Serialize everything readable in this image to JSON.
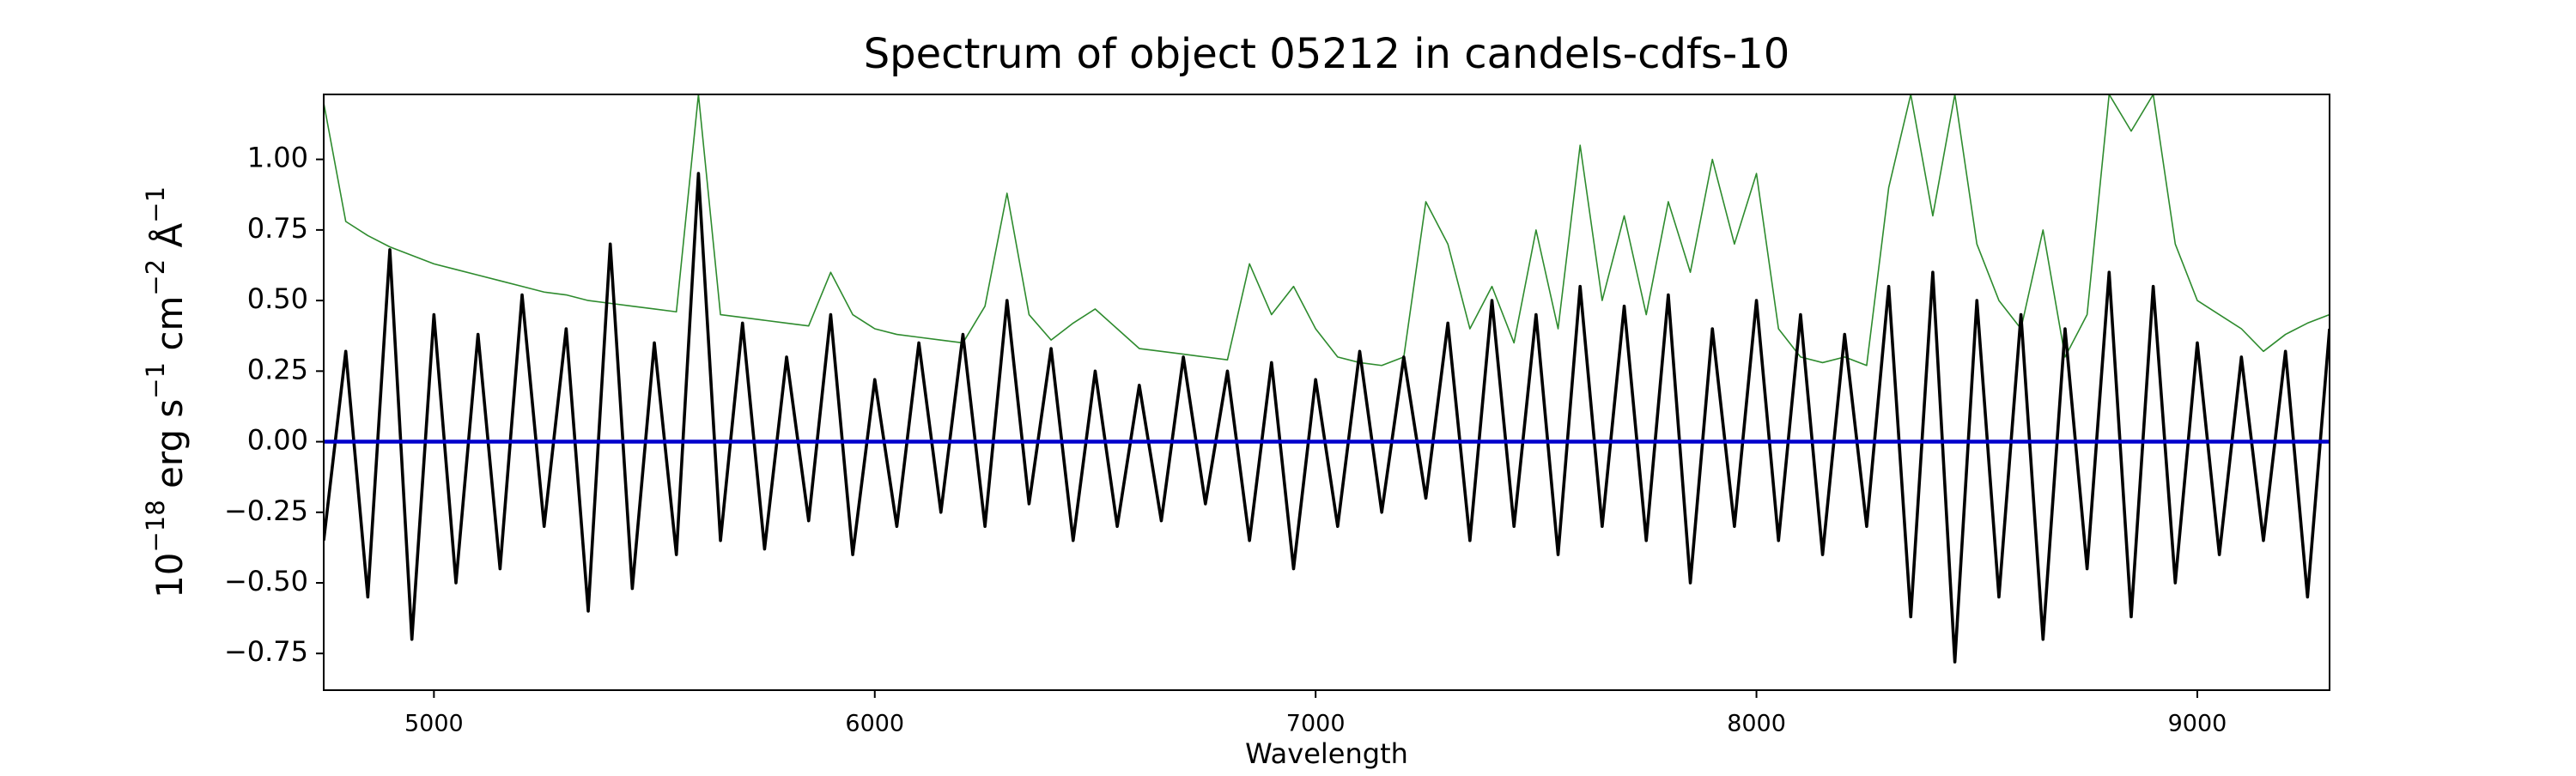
{
  "chart_data": {
    "type": "line",
    "title": "Spectrum of object 05212 in candels-cdfs-10",
    "x_label": "Wavelength",
    "y_label": [
      "10",
      "−18",
      " erg s",
      "−1",
      " cm",
      "−2",
      " Å",
      "−1"
    ],
    "xlim": [
      4750,
      9300
    ],
    "ylim": [
      -0.88,
      1.23
    ],
    "xticks": [
      5000,
      6000,
      7000,
      8000,
      9000
    ],
    "yticks": [
      {
        "value": -0.75,
        "label": "−0.75"
      },
      {
        "value": -0.5,
        "label": "−0.50"
      },
      {
        "value": -0.25,
        "label": "−0.25"
      },
      {
        "value": 0,
        "label": "0.00"
      },
      {
        "value": 0.25,
        "label": "0.25"
      },
      {
        "value": 0.5,
        "label": "0.50"
      },
      {
        "value": 0.75,
        "label": "0.75"
      },
      {
        "value": 1,
        "label": "1.00"
      }
    ],
    "grid": false,
    "series": [
      {
        "color": "#2e8b2e",
        "width": 1.6,
        "x": [
          4750,
          4800,
          4850,
          4900,
          4950,
          5000,
          5050,
          5100,
          5150,
          5200,
          5250,
          5300,
          5350,
          5400,
          5450,
          5500,
          5550,
          5600,
          5650,
          5700,
          5750,
          5800,
          5850,
          5900,
          5950,
          6000,
          6050,
          6100,
          6150,
          6200,
          6250,
          6300,
          6350,
          6400,
          6450,
          6500,
          6550,
          6600,
          6650,
          6700,
          6750,
          6800,
          6850,
          6900,
          6950,
          7000,
          7050,
          7100,
          7150,
          7200,
          7250,
          7300,
          7350,
          7400,
          7450,
          7500,
          7550,
          7600,
          7650,
          7700,
          7750,
          7800,
          7850,
          7900,
          7950,
          8000,
          8050,
          8100,
          8150,
          8200,
          8250,
          8300,
          8350,
          8400,
          8450,
          8500,
          8550,
          8600,
          8650,
          8700,
          8750,
          8800,
          8850,
          8900,
          8950,
          9000,
          9050,
          9100,
          9150,
          9200,
          9250,
          9300
        ],
        "values": [
          1.2,
          0.78,
          0.73,
          0.69,
          0.66,
          0.63,
          0.61,
          0.59,
          0.57,
          0.55,
          0.53,
          0.52,
          0.5,
          0.49,
          0.48,
          0.47,
          0.46,
          1.23,
          0.45,
          0.44,
          0.43,
          0.42,
          0.41,
          0.6,
          0.45,
          0.4,
          0.38,
          0.37,
          0.36,
          0.35,
          0.48,
          0.88,
          0.45,
          0.36,
          0.42,
          0.47,
          0.4,
          0.33,
          0.32,
          0.31,
          0.3,
          0.29,
          0.63,
          0.45,
          0.55,
          0.4,
          0.3,
          0.28,
          0.27,
          0.3,
          0.85,
          0.7,
          0.4,
          0.55,
          0.35,
          0.75,
          0.4,
          1.05,
          0.5,
          0.8,
          0.45,
          0.85,
          0.6,
          1.0,
          0.7,
          0.95,
          0.4,
          0.3,
          0.28,
          0.3,
          0.27,
          0.9,
          1.23,
          0.8,
          1.23,
          0.7,
          0.5,
          0.4,
          0.75,
          0.3,
          0.45,
          1.23,
          1.1,
          1.23,
          0.7,
          0.5,
          0.45,
          0.4,
          0.32,
          0.38,
          0.42,
          0.45
        ]
      },
      {
        "color": "#000000",
        "width": 3.6,
        "x": [
          4750,
          4800,
          4850,
          4900,
          4950,
          5000,
          5050,
          5100,
          5150,
          5200,
          5250,
          5300,
          5350,
          5400,
          5450,
          5500,
          5550,
          5600,
          5650,
          5700,
          5750,
          5800,
          5850,
          5900,
          5950,
          6000,
          6050,
          6100,
          6150,
          6200,
          6250,
          6300,
          6350,
          6400,
          6450,
          6500,
          6550,
          6600,
          6650,
          6700,
          6750,
          6800,
          6850,
          6900,
          6950,
          7000,
          7050,
          7100,
          7150,
          7200,
          7250,
          7300,
          7350,
          7400,
          7450,
          7500,
          7550,
          7600,
          7650,
          7700,
          7750,
          7800,
          7850,
          7900,
          7950,
          8000,
          8050,
          8100,
          8150,
          8200,
          8250,
          8300,
          8350,
          8400,
          8450,
          8500,
          8550,
          8600,
          8650,
          8700,
          8750,
          8800,
          8850,
          8900,
          8950,
          9000,
          9050,
          9100,
          9150,
          9200,
          9250,
          9300
        ],
        "values": [
          -0.35,
          0.32,
          -0.55,
          0.68,
          -0.7,
          0.45,
          -0.5,
          0.38,
          -0.45,
          0.52,
          -0.3,
          0.4,
          -0.6,
          0.7,
          -0.52,
          0.35,
          -0.4,
          0.95,
          -0.35,
          0.42,
          -0.38,
          0.3,
          -0.28,
          0.45,
          -0.4,
          0.22,
          -0.3,
          0.35,
          -0.25,
          0.38,
          -0.3,
          0.5,
          -0.22,
          0.33,
          -0.35,
          0.25,
          -0.3,
          0.2,
          -0.28,
          0.3,
          -0.22,
          0.25,
          -0.35,
          0.28,
          -0.45,
          0.22,
          -0.3,
          0.32,
          -0.25,
          0.3,
          -0.2,
          0.42,
          -0.35,
          0.5,
          -0.3,
          0.45,
          -0.4,
          0.55,
          -0.3,
          0.48,
          -0.35,
          0.52,
          -0.5,
          0.4,
          -0.3,
          0.5,
          -0.35,
          0.45,
          -0.4,
          0.38,
          -0.3,
          0.55,
          -0.62,
          0.6,
          -0.78,
          0.5,
          -0.55,
          0.45,
          -0.7,
          0.4,
          -0.45,
          0.6,
          -0.62,
          0.55,
          -0.5,
          0.35,
          -0.4,
          0.3,
          -0.35,
          0.32,
          -0.55,
          0.4
        ]
      },
      {
        "color": "#0000cc",
        "width": 4.5,
        "x": [
          4750,
          9300
        ],
        "values": [
          0,
          0
        ]
      }
    ]
  }
}
